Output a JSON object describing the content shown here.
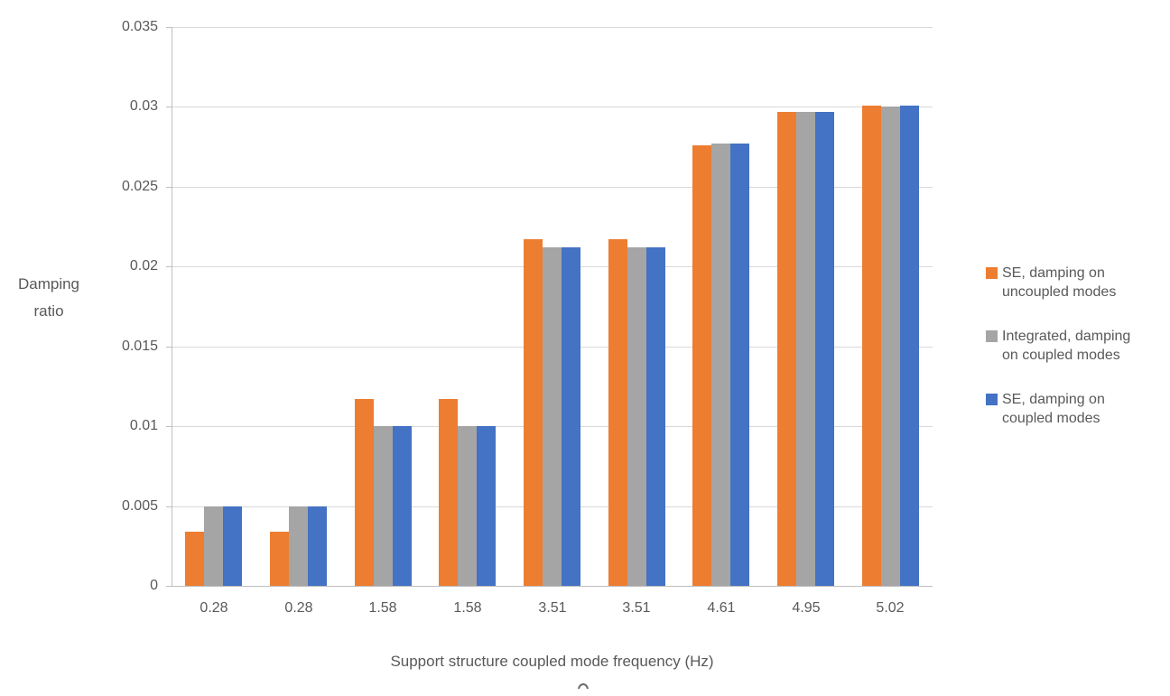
{
  "chart_data": {
    "type": "bar",
    "title": "",
    "xlabel": "Support structure coupled mode frequency (Hz)",
    "ylabel": "Damping\nratio",
    "ylim": [
      0,
      0.035
    ],
    "ytick_step": 0.005,
    "yticks": [
      "0",
      "0.005",
      "0.01",
      "0.015",
      "0.02",
      "0.025",
      "0.03",
      "0.035"
    ],
    "grid": true,
    "legend_position": "right",
    "categories": [
      "0.28",
      "0.28",
      "1.58",
      "1.58",
      "3.51",
      "3.51",
      "4.61",
      "4.95",
      "5.02"
    ],
    "series": [
      {
        "name": "SE, damping on uncoupled modes",
        "label_wrapped": "SE, damping on\nuncoupled modes",
        "color": "#ED7D31",
        "values": [
          0.0034,
          0.0034,
          0.0117,
          0.0117,
          0.0217,
          0.0217,
          0.0276,
          0.0297,
          0.0301
        ]
      },
      {
        "name": "Integrated, damping on coupled modes",
        "label_wrapped": "Integrated, damping\non coupled modes",
        "color": "#A5A5A5",
        "values": [
          0.005,
          0.005,
          0.01,
          0.01,
          0.0212,
          0.0212,
          0.0277,
          0.0297,
          0.03
        ]
      },
      {
        "name": "SE, damping on coupled modes",
        "label_wrapped": "SE, damping on\ncoupled modes",
        "color": "#4472C4",
        "values": [
          0.005,
          0.005,
          0.01,
          0.01,
          0.0212,
          0.0212,
          0.0277,
          0.0297,
          0.0301
        ]
      }
    ]
  },
  "style_colors": {
    "gridline": "#D9D9D9",
    "axis_line": "#BFBFBF",
    "text": "#595959"
  }
}
